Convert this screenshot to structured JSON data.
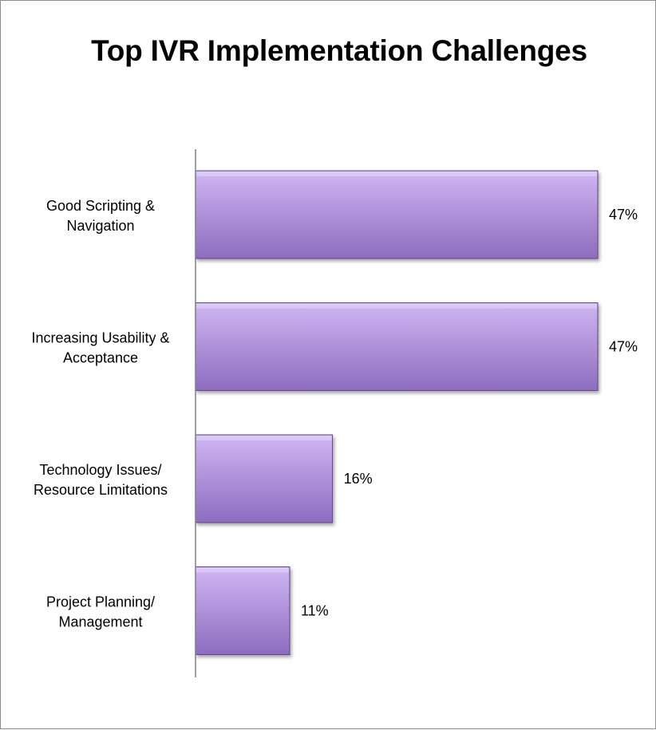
{
  "chart_data": {
    "type": "bar",
    "orientation": "horizontal",
    "title": "Top IVR Implementation Challenges",
    "xlabel": "",
    "ylabel": "",
    "categories": [
      [
        "Good Scripting &",
        "Navigation"
      ],
      [
        "Increasing Usability &",
        "Acceptance"
      ],
      [
        "Technology Issues/",
        "Resource Limitations"
      ],
      [
        "Project Planning/",
        "Management"
      ]
    ],
    "values": [
      47,
      47,
      16,
      11
    ],
    "value_labels": [
      "47%",
      "47%",
      "16%",
      "11%"
    ],
    "xlim": [
      0,
      47
    ],
    "grid": false,
    "legend": "none",
    "colors": {
      "bar_light": "#cfb6f2",
      "bar_dark": "#8d6cc0",
      "bar_edge": "#5e4a80",
      "axis": "#808080"
    }
  }
}
